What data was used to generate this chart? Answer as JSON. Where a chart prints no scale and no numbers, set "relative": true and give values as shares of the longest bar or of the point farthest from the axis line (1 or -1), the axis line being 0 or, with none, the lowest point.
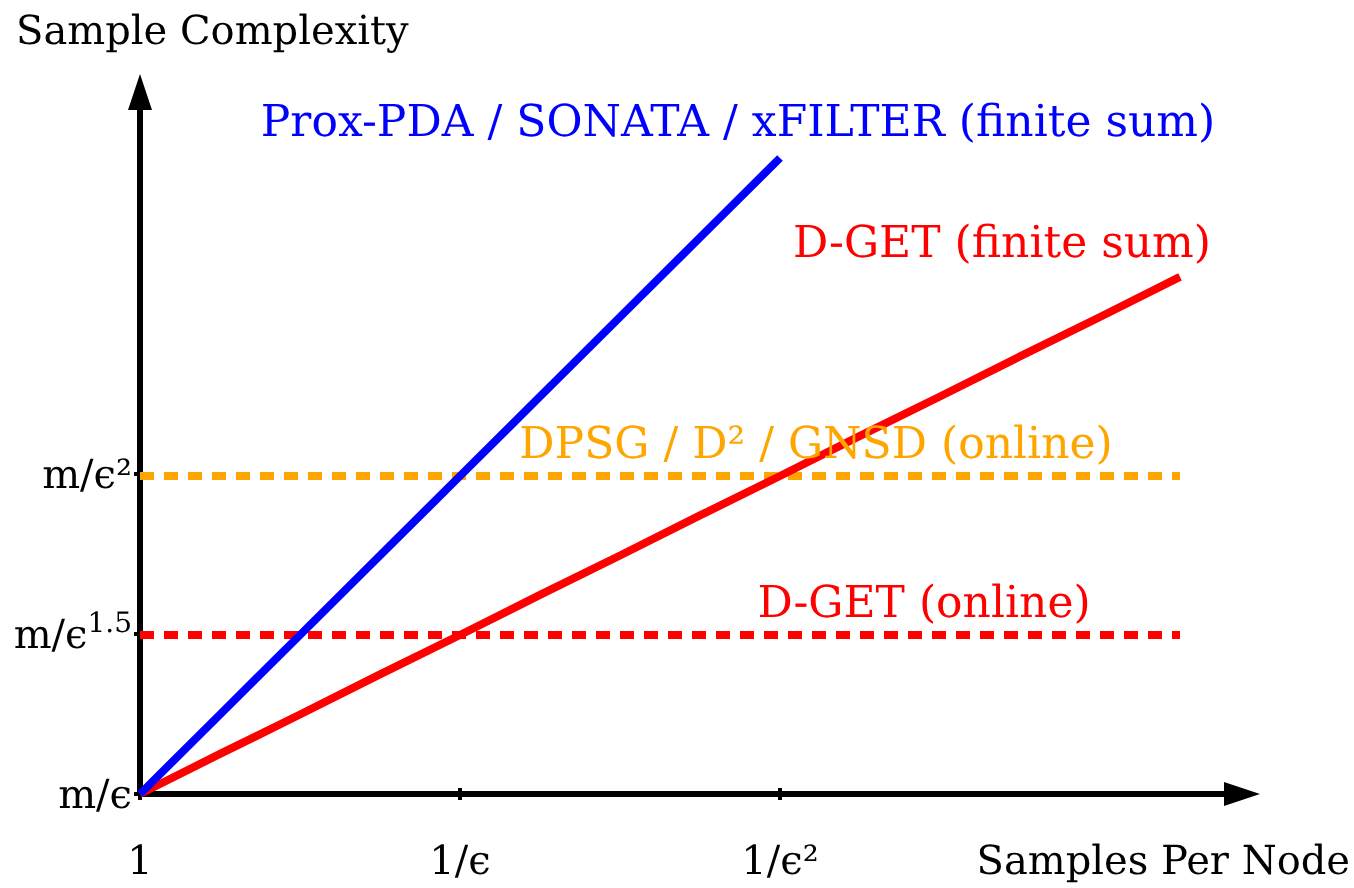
{
  "chart_data": {
    "type": "line",
    "relative": true,
    "xlabel": "Samples Per Node",
    "ylabel": "Sample Complexity",
    "categories": [
      "1",
      null,
      null,
      null,
      "1/ϵ",
      null,
      null,
      null,
      "1/ϵ²",
      null,
      null,
      null,
      null,
      null
    ],
    "annotations": [
      "m/ϵ",
      "m/ϵ$^{1.5}$",
      "m/ϵ²"
    ],
    "grid": false,
    "legend": false,
    "marker": "none",
    "series": [
      {
        "name": "Prox-PDA / SONATA / xFILTER (finite sum)",
        "color": "#0000ff",
        "line_style": "solid",
        "values": [
          0,
          0.125,
          0.25,
          0.375,
          0.5,
          0.625,
          0.75,
          0.875,
          1,
          null,
          null,
          null,
          null,
          null
        ]
      },
      {
        "name": "D-GET (finite sum)",
        "color": "#ff0000",
        "line_style": "solid",
        "values": [
          0,
          0.063,
          0.125,
          0.188,
          0.25,
          0.313,
          0.375,
          0.438,
          0.5,
          0.563,
          0.625,
          0.688,
          0.75,
          0.813
        ]
      },
      {
        "name": "DPSG / D² / GNSD (online)",
        "color": "#ffa500",
        "line_style": "dashed",
        "values": [
          0.5,
          0.5,
          0.5,
          0.5,
          0.5,
          0.5,
          0.5,
          0.5,
          0.5,
          0.5,
          0.5,
          0.5,
          0.5,
          0.5
        ]
      },
      {
        "name": "D-GET (online)",
        "color": "#ff0000",
        "line_style": "dashed",
        "values": [
          0.25,
          0.25,
          0.25,
          0.25,
          0.25,
          0.25,
          0.25,
          0.25,
          0.25,
          0.25,
          0.25,
          0.25,
          0.25,
          0.25
        ]
      }
    ]
  }
}
